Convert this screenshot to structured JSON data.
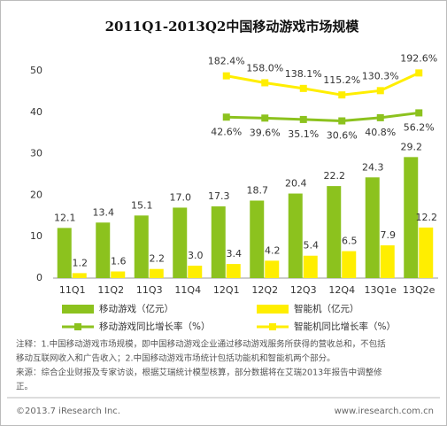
{
  "chart_data": {
    "type": "bar",
    "title": "2011Q1-2013Q2中国移动游戏市场规模",
    "categories": [
      "11Q1",
      "11Q2",
      "11Q3",
      "11Q4",
      "12Q1",
      "12Q2",
      "12Q3",
      "12Q4",
      "13Q1e",
      "13Q2e"
    ],
    "ylim": [
      0,
      50
    ],
    "yticks": [
      0,
      10,
      20,
      30,
      40,
      50
    ],
    "grid": false,
    "series": [
      {
        "name": "移动游戏（亿元）",
        "type": "bar",
        "color": "#8cc21e",
        "values": [
          12.1,
          13.4,
          15.1,
          17.0,
          17.3,
          18.7,
          20.4,
          22.2,
          24.3,
          29.2
        ],
        "value_labels": [
          "12.1",
          "13.4",
          "15.1",
          "17.0",
          "17.3",
          "18.7",
          "20.4",
          "22.2",
          "24.3",
          "29.2"
        ]
      },
      {
        "name": "智能机（亿元）",
        "type": "bar",
        "color": "#ffee00",
        "values": [
          1.2,
          1.6,
          2.2,
          3.0,
          3.4,
          4.2,
          5.4,
          6.5,
          7.9,
          12.2
        ],
        "value_labels": [
          "1.2",
          "1.6",
          "2.2",
          "3.0",
          "3.4",
          "4.2",
          "5.4",
          "6.5",
          "7.9",
          "12.2"
        ]
      },
      {
        "name": "移动游戏同比增长率（%）",
        "type": "line",
        "color": "#8cc21e",
        "ylim": [
          -470,
          190
        ],
        "label_side": "below",
        "values": [
          null,
          null,
          null,
          null,
          42.6,
          39.6,
          35.1,
          30.6,
          40.8,
          56.2
        ],
        "value_labels": [
          null,
          null,
          null,
          null,
          "42.6%",
          "39.6%",
          "35.1%",
          "30.6%",
          "40.8%",
          "56.2%"
        ]
      },
      {
        "name": "智能机同比增长率（%）",
        "type": "line",
        "color": "#ffee00",
        "ylim": [
          -530,
          200
        ],
        "label_side": "above",
        "values": [
          null,
          null,
          null,
          null,
          182.4,
          158.0,
          138.1,
          115.2,
          130.3,
          192.6
        ],
        "value_labels": [
          null,
          null,
          null,
          null,
          "182.4%",
          "158.0%",
          "138.1%",
          "115.2%",
          "130.3%",
          "192.6%"
        ]
      }
    ]
  },
  "notes": [
    "注释：1.中国移动游戏市场规模，即中国移动游戏企业通过移动游戏服务所获得的营收总和，不包括",
    "移动互联网收入和广告收入；2.中国移动游戏市场统计包括功能机和智能机两个部分。",
    "来源：综合企业财报及专家访谈，根据艾瑞统计模型核算，部分数据将在艾瑞2013年报告中调整修",
    "正。"
  ],
  "footer": {
    "copyright": "©2013.7 iResearch Inc.",
    "website": "www.iresearch.com.cn"
  }
}
